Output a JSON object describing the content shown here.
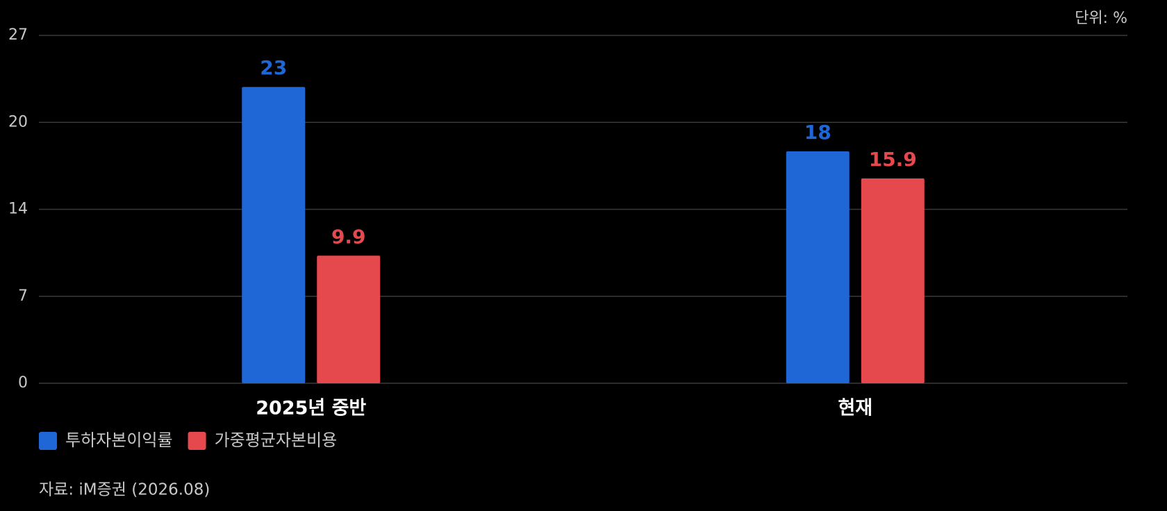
{
  "chart_data": {
    "type": "bar",
    "unit_label": "단위: %",
    "source": "자료: iM증권 (2026.08)",
    "categories": [
      "2025년 중반",
      "현재"
    ],
    "series": [
      {
        "name": "투하자본이익률",
        "color": "#1f67d6",
        "values": [
          23,
          18
        ]
      },
      {
        "name": "가중평균자본비용",
        "color": "#e5484d",
        "values": [
          9.9,
          15.9
        ]
      }
    ],
    "ylim": [
      0,
      27
    ],
    "yticks": [
      0,
      {
        "value": 6.75,
        "label": "7"
      },
      {
        "value": 13.5,
        "label": "14"
      },
      {
        "value": 20.25,
        "label": "20"
      },
      27
    ],
    "grid": true,
    "legend": "bottom-left"
  }
}
